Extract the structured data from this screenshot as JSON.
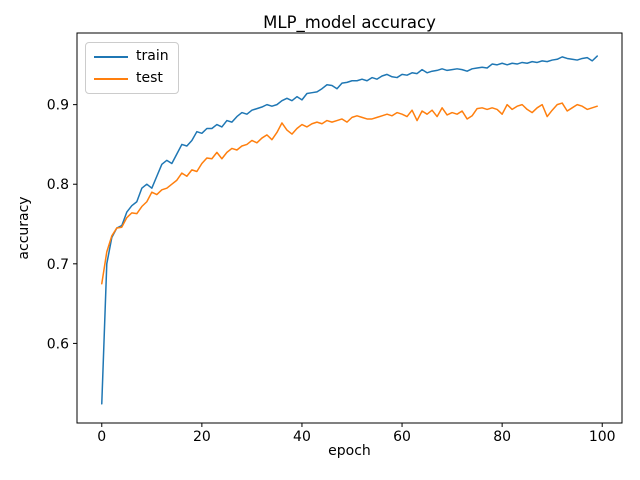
{
  "title": "MLP_model accuracy",
  "chart_data": {
    "type": "line",
    "title": "MLP_model accuracy",
    "xlabel": "epoch",
    "ylabel": "accuracy",
    "xlim": [
      -4.95,
      103.95
    ],
    "ylim": [
      0.5,
      0.99
    ],
    "xtick_values": [
      0,
      20,
      40,
      60,
      80,
      100
    ],
    "xtick_labels": [
      "0",
      "20",
      "40",
      "60",
      "80",
      "100"
    ],
    "ytick_values": [
      0.6,
      0.7,
      0.8,
      0.9
    ],
    "ytick_labels": [
      "0.6",
      "0.7",
      "0.8",
      "0.9"
    ],
    "grid": false,
    "legend_position": "upper left",
    "x": [
      0,
      1,
      2,
      3,
      4,
      5,
      6,
      7,
      8,
      9,
      10,
      11,
      12,
      13,
      14,
      15,
      16,
      17,
      18,
      19,
      20,
      21,
      22,
      23,
      24,
      25,
      26,
      27,
      28,
      29,
      30,
      31,
      32,
      33,
      34,
      35,
      36,
      37,
      38,
      39,
      40,
      41,
      42,
      43,
      44,
      45,
      46,
      47,
      48,
      49,
      50,
      51,
      52,
      53,
      54,
      55,
      56,
      57,
      58,
      59,
      60,
      61,
      62,
      63,
      64,
      65,
      66,
      67,
      68,
      69,
      70,
      71,
      72,
      73,
      74,
      75,
      76,
      77,
      78,
      79,
      80,
      81,
      82,
      83,
      84,
      85,
      86,
      87,
      88,
      89,
      90,
      91,
      92,
      93,
      94,
      95,
      96,
      97,
      98,
      99
    ],
    "series": [
      {
        "name": "train",
        "color": "#1f77b4",
        "values": [
          0.524,
          0.7,
          0.733,
          0.745,
          0.748,
          0.765,
          0.773,
          0.778,
          0.795,
          0.8,
          0.795,
          0.81,
          0.825,
          0.83,
          0.826,
          0.838,
          0.85,
          0.848,
          0.855,
          0.866,
          0.864,
          0.87,
          0.87,
          0.875,
          0.872,
          0.88,
          0.878,
          0.885,
          0.89,
          0.888,
          0.893,
          0.895,
          0.897,
          0.9,
          0.898,
          0.9,
          0.905,
          0.908,
          0.905,
          0.91,
          0.906,
          0.914,
          0.915,
          0.916,
          0.92,
          0.925,
          0.924,
          0.92,
          0.927,
          0.928,
          0.93,
          0.93,
          0.932,
          0.93,
          0.934,
          0.932,
          0.936,
          0.938,
          0.935,
          0.934,
          0.938,
          0.937,
          0.94,
          0.939,
          0.944,
          0.94,
          0.942,
          0.943,
          0.945,
          0.943,
          0.944,
          0.945,
          0.944,
          0.942,
          0.945,
          0.946,
          0.947,
          0.946,
          0.951,
          0.95,
          0.952,
          0.95,
          0.952,
          0.951,
          0.953,
          0.952,
          0.954,
          0.953,
          0.955,
          0.954,
          0.956,
          0.957,
          0.96,
          0.958,
          0.957,
          0.956,
          0.958,
          0.959,
          0.955,
          0.961
        ]
      },
      {
        "name": "test",
        "color": "#ff7f0e",
        "values": [
          0.675,
          0.715,
          0.735,
          0.745,
          0.746,
          0.758,
          0.764,
          0.763,
          0.772,
          0.778,
          0.79,
          0.787,
          0.793,
          0.795,
          0.8,
          0.805,
          0.814,
          0.81,
          0.818,
          0.816,
          0.826,
          0.833,
          0.832,
          0.84,
          0.832,
          0.84,
          0.845,
          0.843,
          0.848,
          0.85,
          0.855,
          0.852,
          0.858,
          0.862,
          0.856,
          0.865,
          0.877,
          0.868,
          0.863,
          0.87,
          0.875,
          0.872,
          0.876,
          0.878,
          0.876,
          0.88,
          0.878,
          0.88,
          0.882,
          0.878,
          0.884,
          0.886,
          0.884,
          0.882,
          0.882,
          0.884,
          0.886,
          0.888,
          0.886,
          0.89,
          0.888,
          0.885,
          0.893,
          0.88,
          0.892,
          0.888,
          0.893,
          0.885,
          0.896,
          0.887,
          0.89,
          0.888,
          0.892,
          0.882,
          0.886,
          0.895,
          0.896,
          0.894,
          0.896,
          0.894,
          0.888,
          0.9,
          0.894,
          0.898,
          0.9,
          0.894,
          0.89,
          0.896,
          0.9,
          0.885,
          0.893,
          0.9,
          0.902,
          0.892,
          0.896,
          0.9,
          0.898,
          0.894,
          0.896,
          0.898
        ]
      }
    ]
  }
}
